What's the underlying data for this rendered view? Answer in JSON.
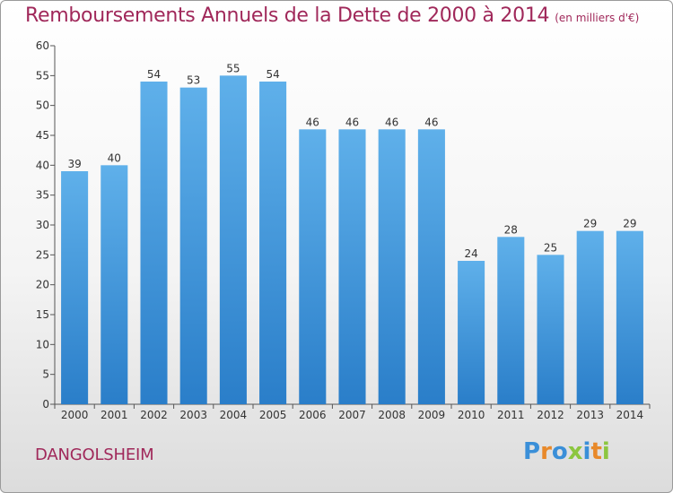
{
  "chart_data": {
    "type": "bar",
    "title": "Remboursements Annuels de la Dette de 2000 à 2014",
    "unit_note": "(en milliers d'€)",
    "categories": [
      "2000",
      "2001",
      "2002",
      "2003",
      "2004",
      "2005",
      "2006",
      "2007",
      "2008",
      "2009",
      "2010",
      "2011",
      "2012",
      "2013",
      "2014"
    ],
    "values": [
      39,
      40,
      54,
      53,
      55,
      54,
      46,
      46,
      46,
      46,
      24,
      28,
      25,
      29,
      29
    ],
    "ylim": [
      0,
      60
    ],
    "yticks": [
      0,
      5,
      10,
      15,
      20,
      25,
      30,
      35,
      40,
      45,
      50,
      55,
      60
    ],
    "grid": false,
    "legend": "none",
    "bar_color_top": "#5fb0ea",
    "bar_color_bottom": "#2a7ec9"
  },
  "footer": {
    "place": "DANGOLSHEIM",
    "logo_letters": [
      "P",
      "r",
      "o",
      "x",
      "i",
      "t",
      "i"
    ],
    "logo_colors": [
      "#3a8fd8",
      "#e8892a",
      "#3a8fd8",
      "#8cc63f",
      "#3a8fd8",
      "#e8892a",
      "#8cc63f"
    ]
  },
  "colors": {
    "title": "#a0285a",
    "axis": "#555555"
  }
}
